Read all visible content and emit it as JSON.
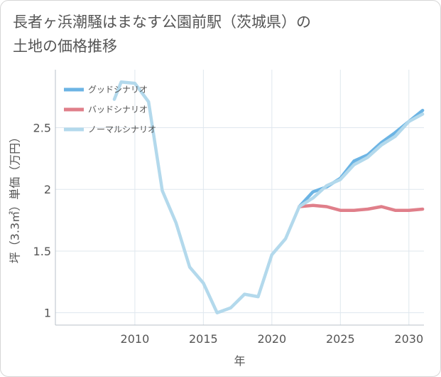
{
  "chart_data": {
    "type": "line",
    "title_line1": "長者ヶ浜潮騒はまなす公園前駅（茨城県）の",
    "title_line2": "土地の価格推移",
    "xlabel": "年",
    "ylabel": "坪（3.3㎡）単価（万円）",
    "xlim": [
      2004.2,
      2031.1
    ],
    "ylim": [
      0.9,
      2.97
    ],
    "xticks": [
      2010,
      2015,
      2020,
      2025,
      2030
    ],
    "xtick_labels": [
      "2010",
      "2015",
      "2020",
      "2025",
      "2030"
    ],
    "yticks": [
      1,
      1.5,
      2,
      2.5
    ],
    "ytick_labels": [
      "1",
      "1.5",
      "2",
      "2.5"
    ],
    "legend_position": "top-left",
    "series": [
      {
        "name": "グッドシナリオ",
        "color": "#6cb4e4",
        "x": [
          2022,
          2023,
          2024,
          2025,
          2026,
          2027,
          2028,
          2029,
          2030,
          2031
        ],
        "y": [
          1.86,
          1.98,
          2.02,
          2.09,
          2.23,
          2.28,
          2.38,
          2.46,
          2.55,
          2.64
        ]
      },
      {
        "name": "バッドシナリオ",
        "color": "#e07f8a",
        "x": [
          2022,
          2023,
          2024,
          2025,
          2026,
          2027,
          2028,
          2029,
          2030,
          2031
        ],
        "y": [
          1.86,
          1.87,
          1.86,
          1.83,
          1.83,
          1.84,
          1.86,
          1.83,
          1.83,
          1.84
        ]
      },
      {
        "name": "ノーマルシナリオ",
        "color": "#b3d9ec",
        "x": [
          2008.5,
          2009,
          2010,
          2011,
          2012,
          2013,
          2014,
          2015,
          2016,
          2017,
          2018,
          2019,
          2020,
          2021,
          2022,
          2023,
          2024,
          2025,
          2026,
          2027,
          2028,
          2029,
          2030,
          2031
        ],
        "y": [
          2.73,
          2.87,
          2.86,
          2.71,
          1.99,
          1.73,
          1.37,
          1.24,
          1.0,
          1.04,
          1.15,
          1.13,
          1.47,
          1.6,
          1.86,
          1.93,
          2.03,
          2.08,
          2.2,
          2.26,
          2.36,
          2.43,
          2.55,
          2.61
        ]
      }
    ]
  }
}
